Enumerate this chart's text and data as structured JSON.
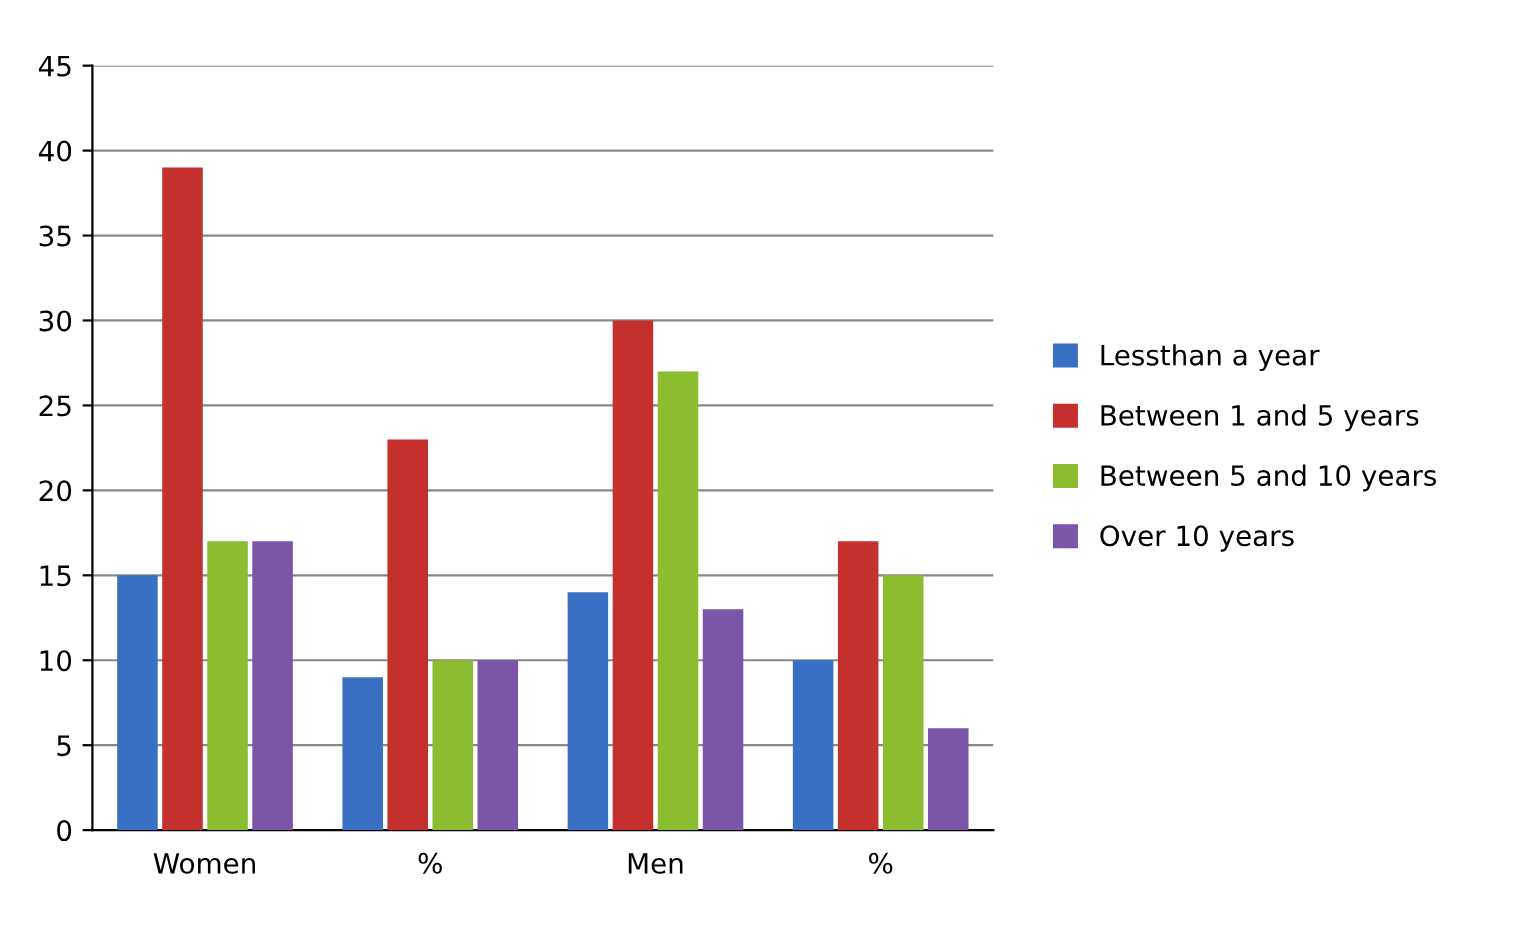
{
  "chart_data": {
    "type": "bar",
    "categories": [
      "Women",
      "%",
      "Men",
      "%"
    ],
    "series": [
      {
        "name": "Lessthan a year",
        "color": "#3a70c4",
        "values": [
          15,
          9,
          14,
          10
        ]
      },
      {
        "name": "Between 1 and 5 years",
        "color": "#c3302d",
        "values": [
          39,
          23,
          30,
          17
        ]
      },
      {
        "name": "Between 5 and 10 years",
        "color": "#8cbd30",
        "values": [
          17,
          10,
          27,
          15
        ]
      },
      {
        "name": "Over 10 years",
        "color": "#7b56a8",
        "values": [
          17,
          10,
          13,
          6
        ]
      }
    ],
    "ylim": [
      0,
      45
    ],
    "yticks": [
      0,
      5,
      10,
      15,
      20,
      25,
      30,
      35,
      40,
      45
    ],
    "grid": "y",
    "legend": "right"
  }
}
